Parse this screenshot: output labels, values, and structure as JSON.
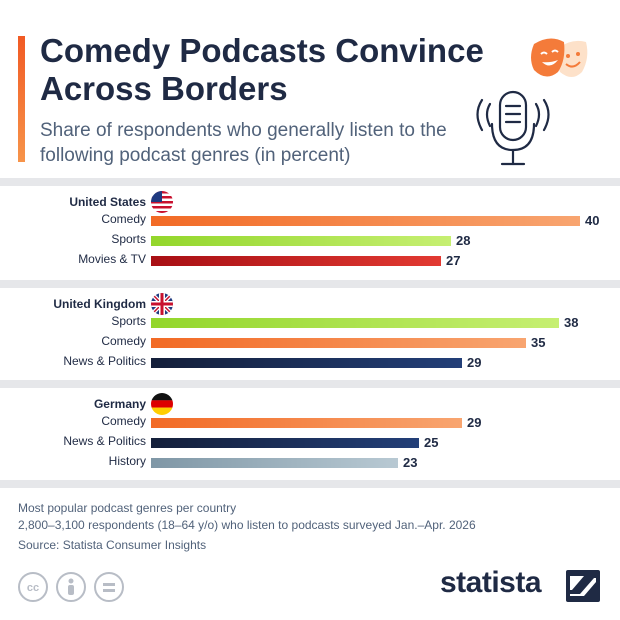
{
  "header": {
    "title": "Comedy Podcasts Convince Across Borders",
    "subtitle": "Share of respondents who generally listen to the following podcast genres (in percent)"
  },
  "colors": {
    "Comedy": "#f47b3a",
    "Sports": "#a8e040",
    "Movies & TV": "#c01818",
    "News & Politics": "#1a2f5a",
    "History": "#98adba"
  },
  "chart_data": {
    "type": "bar",
    "orientation": "horizontal",
    "xlim": [
      0,
      40
    ],
    "groups": [
      {
        "country": "United States",
        "flag": "us-flag-icon",
        "rows": [
          {
            "label": "Comedy",
            "value": 40
          },
          {
            "label": "Sports",
            "value": 28
          },
          {
            "label": "Movies & TV",
            "value": 27
          }
        ]
      },
      {
        "country": "United Kingdom",
        "flag": "uk-flag-icon",
        "rows": [
          {
            "label": "Sports",
            "value": 38
          },
          {
            "label": "Comedy",
            "value": 35
          },
          {
            "label": "News & Politics",
            "value": 29
          }
        ]
      },
      {
        "country": "Germany",
        "flag": "germany-flag-icon",
        "rows": [
          {
            "label": "Comedy",
            "value": 29
          },
          {
            "label": "News & Politics",
            "value": 25
          },
          {
            "label": "History",
            "value": 23
          }
        ]
      }
    ]
  },
  "footer": {
    "note1": "Most popular podcast genres per country",
    "note2": "2,800–3,100 respondents (18–64 y/o) who listen to podcasts surveyed Jan.–Apr. 2026",
    "source": "Source: Statista Consumer Insights",
    "brand": "statista"
  }
}
